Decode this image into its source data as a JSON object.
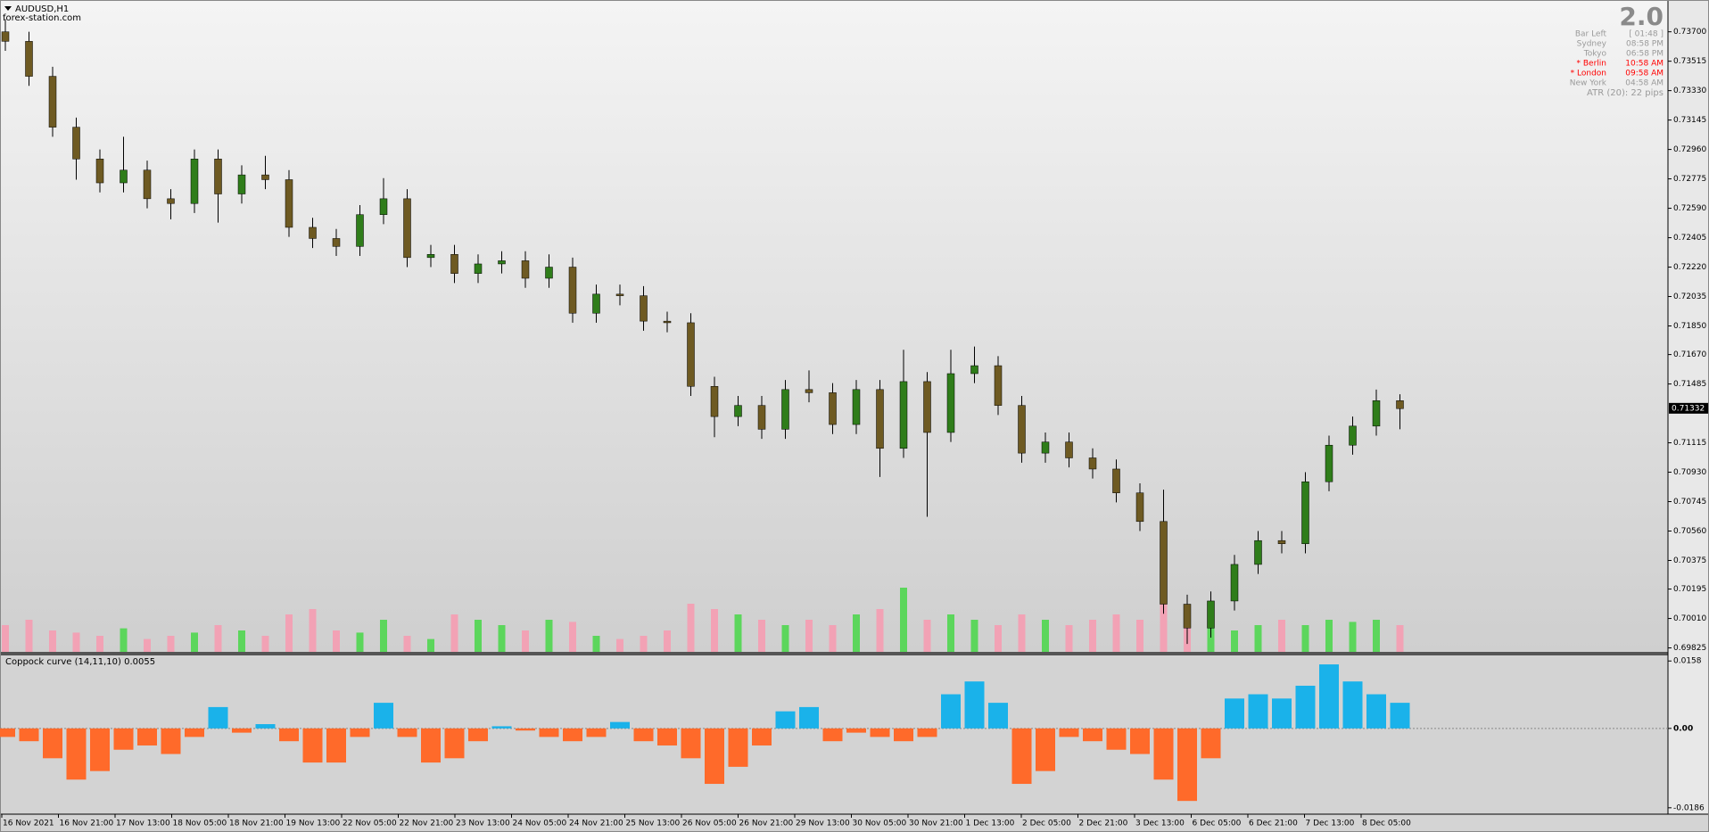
{
  "chart_data": [
    {
      "type": "candlestick",
      "title": "AUDUSD,H1",
      "subtitle": "forex-station.com",
      "open": [
        0.737,
        0.7364,
        0.7342,
        0.731,
        0.729,
        0.7275,
        0.7283,
        0.7265,
        0.7262,
        0.729,
        0.7268,
        0.728,
        0.7277,
        0.7247,
        0.724,
        0.7235,
        0.7255,
        0.7265,
        0.7228,
        0.723,
        0.7218,
        0.7224,
        0.7226,
        0.7215,
        0.7222,
        0.7193,
        0.7205,
        0.7204,
        0.7188,
        0.7187,
        0.7147,
        0.7128,
        0.7135,
        0.712,
        0.7145,
        0.7143,
        0.7123,
        0.7145,
        0.7108,
        0.715,
        0.7118,
        0.7155,
        0.716,
        0.7135,
        0.7105,
        0.7112,
        0.7102,
        0.7095,
        0.708,
        0.7062,
        0.701,
        0.6995,
        0.7012,
        0.7035,
        0.705,
        0.7048,
        0.7087,
        0.711,
        0.7122,
        0.7138
      ],
      "high": [
        0.7378,
        0.737,
        0.7348,
        0.7316,
        0.7296,
        0.7304,
        0.7289,
        0.7271,
        0.7296,
        0.7296,
        0.7286,
        0.7292,
        0.7283,
        0.7253,
        0.7246,
        0.7261,
        0.7278,
        0.7271,
        0.7236,
        0.7236,
        0.723,
        0.7232,
        0.7232,
        0.723,
        0.7228,
        0.7211,
        0.7211,
        0.721,
        0.7194,
        0.7193,
        0.7153,
        0.7141,
        0.7141,
        0.7151,
        0.7157,
        0.7149,
        0.7151,
        0.7151,
        0.717,
        0.7156,
        0.717,
        0.7172,
        0.7166,
        0.7141,
        0.7118,
        0.7118,
        0.7108,
        0.7101,
        0.7086,
        0.7082,
        0.7016,
        0.7018,
        0.7041,
        0.7056,
        0.7056,
        0.7093,
        0.7116,
        0.7128,
        0.7145,
        0.7142
      ],
      "low": [
        0.7358,
        0.7336,
        0.7304,
        0.7277,
        0.7269,
        0.7269,
        0.7259,
        0.7252,
        0.7256,
        0.725,
        0.7262,
        0.7271,
        0.7241,
        0.7234,
        0.7229,
        0.7229,
        0.7249,
        0.7222,
        0.7222,
        0.7212,
        0.7212,
        0.7218,
        0.7209,
        0.7209,
        0.7187,
        0.7187,
        0.7198,
        0.7182,
        0.7181,
        0.7141,
        0.7115,
        0.7122,
        0.7114,
        0.7114,
        0.7137,
        0.7117,
        0.7117,
        0.709,
        0.7102,
        0.7065,
        0.7112,
        0.7149,
        0.7129,
        0.7099,
        0.7099,
        0.7096,
        0.7089,
        0.7074,
        0.7056,
        0.7004,
        0.6985,
        0.6989,
        0.7006,
        0.7029,
        0.7042,
        0.7042,
        0.7081,
        0.7104,
        0.7116,
        0.712
      ],
      "close": [
        0.7364,
        0.7342,
        0.731,
        0.729,
        0.7275,
        0.7283,
        0.7265,
        0.7262,
        0.729,
        0.7268,
        0.728,
        0.7277,
        0.7247,
        0.724,
        0.7235,
        0.7255,
        0.7265,
        0.7228,
        0.723,
        0.7218,
        0.7224,
        0.7226,
        0.7215,
        0.7222,
        0.7193,
        0.7205,
        0.7204,
        0.7188,
        0.7187,
        0.7147,
        0.7128,
        0.7135,
        0.712,
        0.7145,
        0.7143,
        0.7123,
        0.7145,
        0.7108,
        0.715,
        0.7118,
        0.7155,
        0.716,
        0.7135,
        0.7105,
        0.7112,
        0.7102,
        0.7095,
        0.708,
        0.7062,
        0.701,
        0.6995,
        0.7012,
        0.7035,
        0.705,
        0.7048,
        0.7087,
        0.711,
        0.7122,
        0.7138,
        0.7133
      ],
      "volume": [
        25,
        30,
        20,
        18,
        15,
        22,
        12,
        15,
        18,
        25,
        20,
        15,
        35,
        40,
        20,
        18,
        30,
        15,
        12,
        35,
        30,
        25,
        20,
        30,
        28,
        15,
        12,
        15,
        20,
        45,
        40,
        35,
        30,
        25,
        30,
        25,
        35,
        40,
        60,
        30,
        35,
        30,
        25,
        35,
        30,
        25,
        30,
        35,
        30,
        55,
        40,
        25,
        20,
        25,
        30,
        25,
        30,
        28,
        30,
        25
      ],
      "up_color": "#2f7d1a",
      "down_color": "#6e5a22",
      "volume_up_color": "#5cd65c",
      "volume_down_color": "#f2a2b5",
      "ylim": [
        0.698,
        0.739
      ],
      "yticks": [
        {
          "value": 0.737,
          "label": "0.73700"
        },
        0.73515,
        {
          "value": 0.7333,
          "label": "0.73330"
        },
        0.73145,
        {
          "value": 0.7296,
          "label": "0.72960"
        },
        0.72775,
        {
          "value": 0.7259,
          "label": "0.72590"
        },
        0.72405,
        {
          "value": 0.7222,
          "label": "0.72220"
        },
        0.72035,
        {
          "value": 0.7185,
          "label": "0.71850"
        },
        {
          "value": 0.7167,
          "label": "0.71670"
        },
        0.71485,
        0.71115,
        {
          "value": 0.7093,
          "label": "0.70930"
        },
        0.70745,
        {
          "value": 0.7056,
          "label": "0.70560"
        },
        0.70375,
        0.70195,
        {
          "value": 0.7001,
          "label": "0.70010"
        },
        0.69825
      ],
      "current_price": 0.71332,
      "x_labels": [
        "16 Nov 2021",
        "16 Nov 21:00",
        "17 Nov 13:00",
        "18 Nov 05:00",
        "18 Nov 21:00",
        "19 Nov 13:00",
        "22 Nov 05:00",
        "22 Nov 21:00",
        "23 Nov 13:00",
        "24 Nov 05:00",
        "24 Nov 21:00",
        "25 Nov 13:00",
        "26 Nov 05:00",
        "26 Nov 21:00",
        "29 Nov 13:00",
        "30 Nov 05:00",
        "30 Nov 21:00",
        "1 Dec 13:00",
        "2 Dec 05:00",
        "2 Dec 21:00",
        "3 Dec 13:00",
        "6 Dec 05:00",
        "6 Dec 21:00",
        "7 Dec 13:00",
        "8 Dec 05:00"
      ]
    },
    {
      "type": "bar",
      "title": "Coppock curve  (14,11,10) 0.0055",
      "values": [
        -0.002,
        -0.003,
        -0.007,
        -0.012,
        -0.01,
        -0.005,
        -0.004,
        -0.006,
        -0.002,
        0.005,
        -0.001,
        0.001,
        -0.003,
        -0.008,
        -0.008,
        -0.002,
        0.006,
        -0.002,
        -0.008,
        -0.007,
        -0.003,
        0.0005,
        -0.0005,
        -0.002,
        -0.003,
        -0.002,
        0.0015,
        -0.003,
        -0.004,
        -0.007,
        -0.013,
        -0.009,
        -0.004,
        0.004,
        0.005,
        -0.003,
        -0.001,
        -0.002,
        -0.003,
        -0.002,
        0.008,
        0.011,
        0.006,
        -0.013,
        -0.01,
        -0.002,
        -0.003,
        -0.005,
        -0.006,
        -0.012,
        -0.017,
        -0.007,
        0.007,
        0.008,
        0.007,
        0.01,
        0.015,
        0.011,
        0.008,
        0.006
      ],
      "positive_color": "#1ab2ea",
      "negative_color": "#ff6a2a",
      "ylim": [
        -0.0201,
        0.0171
      ],
      "yticks": [
        0.0158,
        {
          "value": 0,
          "label": "0.00"
        },
        -0.0186
      ]
    }
  ],
  "info_panel": {
    "version": "2.0",
    "rows": [
      {
        "label": "Bar Left",
        "time": "[ 01:48 ]",
        "color": "#9a9a9a"
      },
      {
        "label": "Sydney",
        "time": "08:58 PM",
        "color": "#9a9a9a"
      },
      {
        "label": "Tokyo",
        "time": "06:58 PM",
        "color": "#9a9a9a"
      },
      {
        "label": "* Berlin",
        "time": "10:58 AM",
        "color": "#ff0000"
      },
      {
        "label": "* London",
        "time": "09:58 AM",
        "color": "#ff0000"
      },
      {
        "label": "New York",
        "time": "04:58 AM",
        "color": "#9a9a9a"
      }
    ],
    "footer": "ATR (20): 22 pips"
  }
}
